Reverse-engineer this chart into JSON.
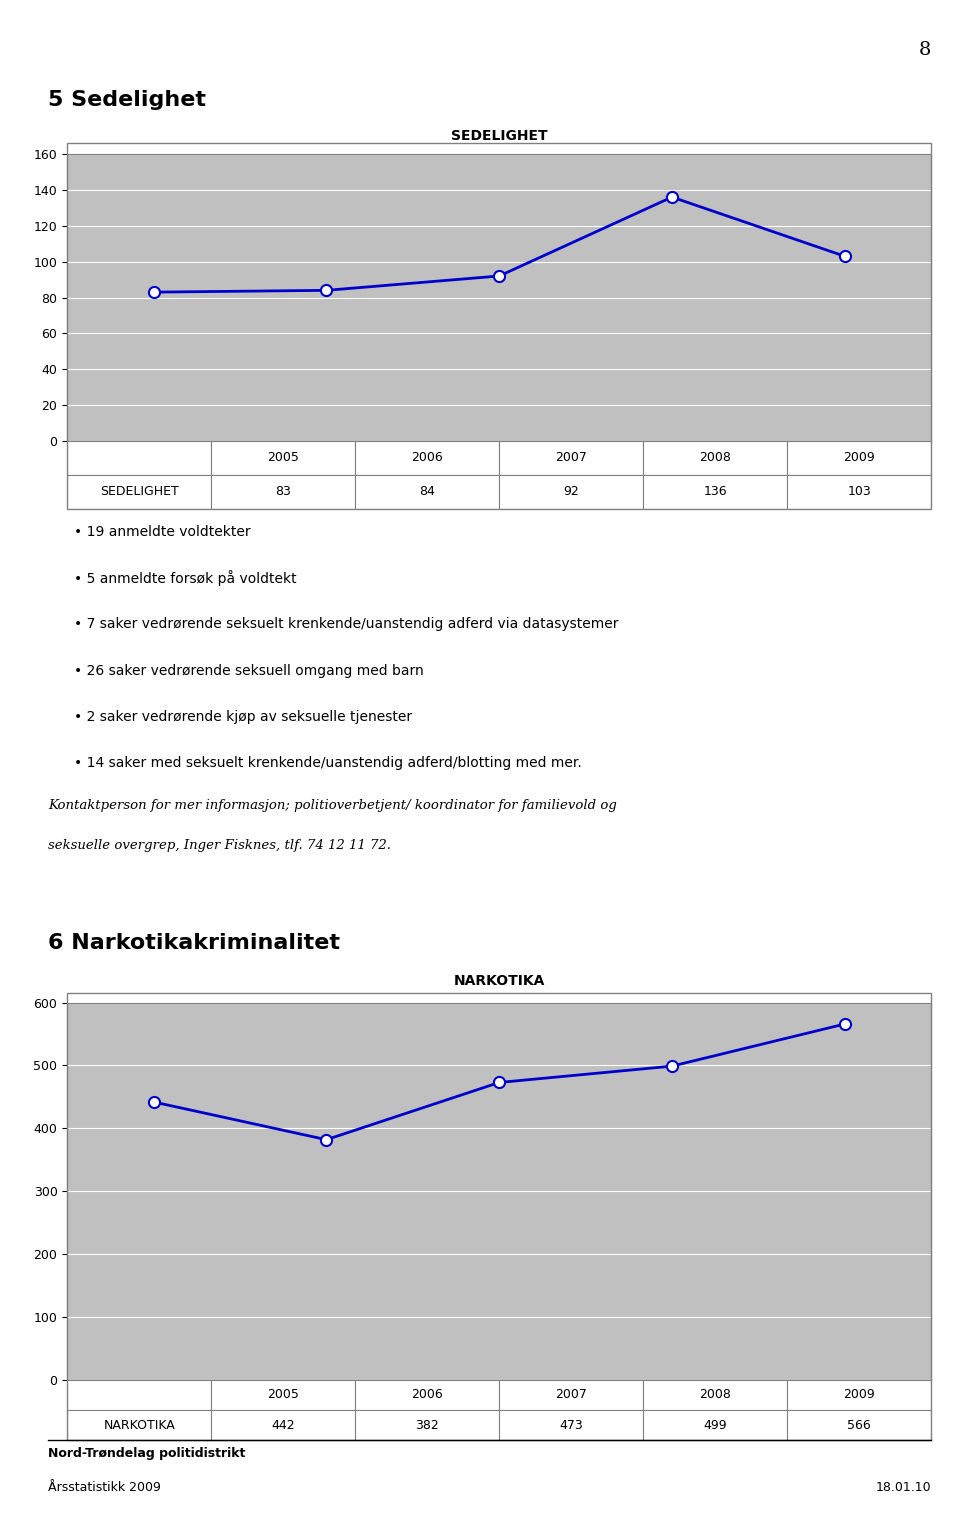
{
  "page_number": "8",
  "section1_title": "5 Sedelighet",
  "chart1_title": "SEDELIGHET",
  "chart1_years": [
    2005,
    2006,
    2007,
    2008,
    2009
  ],
  "chart1_values": [
    83,
    84,
    92,
    136,
    103
  ],
  "chart1_row_label": "SEDELIGHET",
  "chart1_ylim": [
    0,
    160
  ],
  "chart1_yticks": [
    0,
    20,
    40,
    60,
    80,
    100,
    120,
    140,
    160
  ],
  "bullets": [
    "19 anmeldte voldtekter",
    "5 anmeldte forsøk på voldtekt",
    "7 saker vedrørende seksuelt krenkende/uanstendig adferd via datasystemer",
    "26 saker vedrørende seksuell omgang med barn",
    "2 saker vedrørende kjøp av seksuelle tjenester",
    "14 saker med seksuelt krenkende/uanstendig adferd/blotting med mer."
  ],
  "italic_text_line1": "Kontaktperson for mer informasjon; politioverbetjent/ koordinator for familievold og",
  "italic_text_line2": "seksuelle overgrep, Inger Fisknes, tlf. 74 12 11 72.",
  "section2_title": "6 Narkotikakriminalitet",
  "chart2_title": "NARKOTIKA",
  "chart2_years": [
    2005,
    2006,
    2007,
    2008,
    2009
  ],
  "chart2_values": [
    442,
    382,
    473,
    499,
    566
  ],
  "chart2_row_label": "NARKOTIKA",
  "chart2_ylim": [
    0,
    600
  ],
  "chart2_yticks": [
    0,
    100,
    200,
    300,
    400,
    500,
    600
  ],
  "footer_left1": "Nord-Trøndelag politidistrikt",
  "footer_left2": "Årsstatistikk 2009",
  "footer_right": "18.01.10",
  "line_color": "#0000CC",
  "marker_face": "#FFFFFF",
  "chart_bg": "#C0C0C0",
  "chart_border": "#808080",
  "table_border": "#808080",
  "bg_color": "#FFFFFF"
}
